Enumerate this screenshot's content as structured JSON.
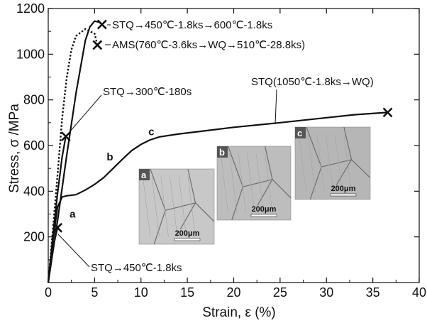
{
  "chart_data": {
    "type": "line",
    "title": "",
    "xlabel": "Strain, ε (%)",
    "ylabel": "Stress, σ /MPa",
    "xlim": [
      0,
      40
    ],
    "ylim": [
      0,
      1200
    ],
    "xticks": [
      0,
      5,
      10,
      15,
      20,
      25,
      30,
      35,
      40
    ],
    "yticks": [
      200,
      400,
      600,
      800,
      1000,
      1200
    ],
    "grid": false,
    "legend": "none",
    "series": [
      {
        "name": "STQ(1050℃-1.8ks→WQ)",
        "style": "solid",
        "x": [
          0,
          0.5,
          1.0,
          1.5,
          2.0,
          3.0,
          4.0,
          5.0,
          6.0,
          7.0,
          8.0,
          9.0,
          10.0,
          11.0,
          12.0,
          14.0,
          17.0,
          20.0,
          25.0,
          30.0,
          33.0,
          36.6
        ],
        "y": [
          0,
          180,
          330,
          375,
          380,
          385,
          405,
          430,
          460,
          500,
          540,
          578,
          605,
          625,
          638,
          650,
          665,
          680,
          700,
          722,
          735,
          745
        ],
        "end_marker": "x"
      },
      {
        "name": "STQ→300℃-180s",
        "style": "solid",
        "x": [
          0,
          0.5,
          1.0,
          1.5,
          1.9
        ],
        "y": [
          0,
          200,
          390,
          550,
          640
        ],
        "end_marker": "x"
      },
      {
        "name": "STQ→450℃-1.8ks",
        "style": "solid",
        "x": [
          0,
          0.5,
          1.0
        ],
        "y": [
          0,
          150,
          240
        ],
        "end_marker": "x"
      },
      {
        "name": "STQ→450℃-1.8ks→600℃-1.8ks",
        "style": "solid",
        "x": [
          0,
          1.0,
          2.0,
          3.0,
          4.0,
          4.5,
          5.0,
          5.5,
          5.8
        ],
        "y": [
          0,
          270,
          560,
          830,
          1060,
          1120,
          1145,
          1140,
          1130
        ],
        "end_marker": "x"
      },
      {
        "name": "AMS(760℃-3.6ks→WQ→510℃-28.8ks)",
        "style": "dotted",
        "x": [
          0,
          0.5,
          1.0,
          1.5,
          2.0,
          2.5,
          3.0,
          4.0,
          5.0,
          5.3
        ],
        "y": [
          0,
          230,
          470,
          720,
          900,
          1020,
          1080,
          1110,
          1090,
          1040
        ],
        "end_marker": "x"
      }
    ],
    "point_labels": [
      {
        "text": "a",
        "x": 2.3,
        "y": 285
      },
      {
        "text": "b",
        "x": 6.3,
        "y": 535
      },
      {
        "text": "c",
        "x": 10.8,
        "y": 645
      }
    ],
    "annotations": [
      {
        "text": "STQ→450℃-1.8ks→600℃-1.8ks"
      },
      {
        "text": "AMS(760℃-3.6ks→WQ→510℃-28.8ks)"
      },
      {
        "text": "STQ→300℃-180s"
      },
      {
        "text": "STQ(1050℃-1.8ks→WQ)"
      },
      {
        "text": "STQ→450℃-1.8ks"
      }
    ],
    "insets": [
      {
        "letter": "a",
        "scale": "200μm",
        "shade": "#c8c8c8"
      },
      {
        "letter": "b",
        "scale": "200μm",
        "shade": "#bdbdbd"
      },
      {
        "letter": "c",
        "scale": "200μm",
        "shade": "#b6b6b6"
      }
    ]
  }
}
